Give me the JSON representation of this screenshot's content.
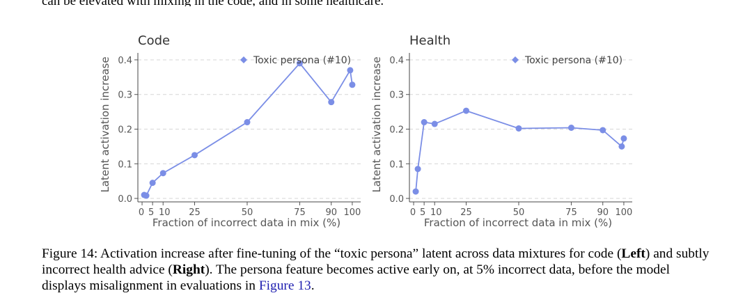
{
  "top_text": "can be elevated with mixing in the code, and in some healthcare.",
  "chart_data": [
    {
      "type": "line",
      "title": "Code",
      "xlabel": "Fraction of incorrect data in mix (%)",
      "ylabel": "Latent activation increase",
      "xlim": [
        -2,
        104
      ],
      "ylim": [
        -0.01,
        0.42
      ],
      "xticks": [
        0,
        5,
        10,
        25,
        50,
        75,
        90,
        100
      ],
      "xtick_labels": [
        "0",
        "5",
        "10",
        "25",
        "50",
        "75",
        "90",
        "100"
      ],
      "yticks": [
        0.0,
        0.1,
        0.2,
        0.3,
        0.4
      ],
      "ytick_labels": [
        "0.0",
        "0.1",
        "0.2",
        "0.3",
        "0.4"
      ],
      "grid": "horizontal dashed",
      "legend_position": "top-right",
      "series": [
        {
          "name": "Toxic persona (#10)",
          "color": "#7b8ee6",
          "x": [
            1,
            2,
            5,
            10,
            25,
            50,
            75,
            90,
            99,
            100
          ],
          "y": [
            0.01,
            0.008,
            0.045,
            0.073,
            0.125,
            0.22,
            0.39,
            0.278,
            0.37,
            0.328
          ]
        }
      ]
    },
    {
      "type": "line",
      "title": "Health",
      "xlabel": "Fraction of incorrect data in mix (%)",
      "ylabel": "Latent activation increase",
      "xlim": [
        -2,
        104
      ],
      "ylim": [
        -0.01,
        0.42
      ],
      "xticks": [
        0,
        5,
        10,
        25,
        50,
        75,
        90,
        100
      ],
      "xtick_labels": [
        "0",
        "5",
        "10",
        "25",
        "50",
        "75",
        "90",
        "100"
      ],
      "yticks": [
        0.0,
        0.1,
        0.2,
        0.3,
        0.4
      ],
      "ytick_labels": [
        "0.0",
        "0.1",
        "0.2",
        "0.3",
        "0.4"
      ],
      "grid": "horizontal dashed",
      "legend_position": "top-right",
      "series": [
        {
          "name": "Toxic persona (#10)",
          "color": "#7b8ee6",
          "x": [
            1,
            2,
            5,
            10,
            25,
            50,
            75,
            90,
            99,
            100
          ],
          "y": [
            0.02,
            0.085,
            0.22,
            0.215,
            0.253,
            0.202,
            0.204,
            0.197,
            0.15,
            0.173
          ]
        }
      ]
    }
  ],
  "caption": {
    "prefix": "Figure 14: Activation increase after fine-tuning of the “toxic persona” latent across data mixtures for code (",
    "bold1": "Left",
    "middle": ") and subtly incorrect health advice (",
    "bold2": "Right",
    "suffix": "). The persona feature becomes active early on, at 5% incorrect data, before the model displays misalignment in evaluations in ",
    "ref": "Figure 13",
    "end": "."
  }
}
